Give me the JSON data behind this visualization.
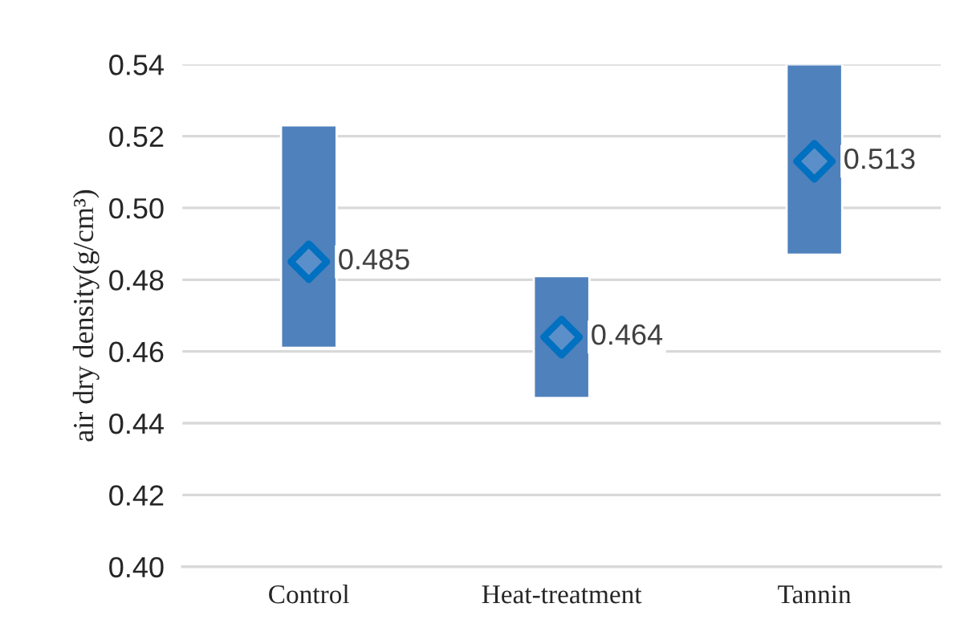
{
  "chart_data": {
    "type": "bar",
    "ylabel": "air dry density(g/cm³)",
    "categories": [
      "Control",
      "Heat-treatment",
      "Tannin"
    ],
    "series": [
      {
        "type": "bar",
        "color": "#4f81bd",
        "base": [
          0.461,
          0.447,
          0.487
        ],
        "values": [
          0.062,
          0.034,
          0.053
        ]
      },
      {
        "type": "scatter",
        "color": "#0070c0",
        "marker": "diamond",
        "x": [
          "Control",
          "Heat-treatment",
          "Tannin"
        ],
        "values": [
          0.485,
          0.464,
          0.513
        ],
        "value_labels": [
          "0.485",
          "0.464",
          "0.513"
        ]
      }
    ],
    "ylim": [
      0.4,
      0.54
    ],
    "yticks": [
      {
        "value": 0.4,
        "label": "0.40"
      },
      {
        "value": 0.42,
        "label": "0.42"
      },
      {
        "value": 0.44,
        "label": "0.44"
      },
      {
        "value": 0.46,
        "label": "0.46"
      },
      {
        "value": 0.48,
        "label": "0.48"
      },
      {
        "value": 0.5,
        "label": "0.50"
      },
      {
        "value": 0.52,
        "label": "0.52"
      },
      {
        "value": 0.54,
        "label": "0.54"
      }
    ],
    "grid": "y",
    "legend": false
  }
}
